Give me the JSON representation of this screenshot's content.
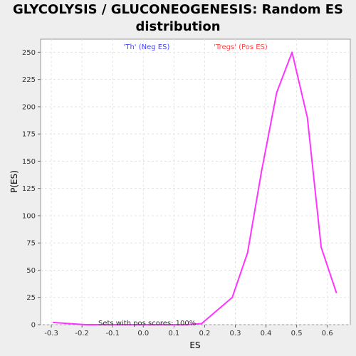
{
  "chart_data": {
    "type": "line",
    "title_line1": "GLYCOLYSIS / GLUCONEOGENESIS: Random ES",
    "title_line2": "distribution",
    "xlabel": "ES",
    "ylabel": "P(ES)",
    "xlim": [
      -0.335,
      0.675
    ],
    "ylim": [
      0,
      262
    ],
    "x_ticks": [
      -0.3,
      -0.2,
      -0.1,
      0.0,
      0.1,
      0.2,
      0.3,
      0.4,
      0.5,
      0.6
    ],
    "x_tick_labels": [
      "-0.3",
      "-0.2",
      "-0.1",
      "0.0",
      "0.1",
      "0.2",
      "0.3",
      "0.4",
      "0.5",
      "0.6"
    ],
    "y_ticks": [
      0,
      25,
      50,
      75,
      100,
      125,
      150,
      175,
      200,
      225,
      250
    ],
    "y_tick_labels": [
      "0",
      "25",
      "50",
      "75",
      "100",
      "125",
      "150",
      "175",
      "200",
      "225",
      "250"
    ],
    "grid": true,
    "series": [
      {
        "color": "#ff33ff",
        "x": [
          -0.295,
          -0.19,
          -0.1,
          0.0,
          0.1,
          0.14,
          0.19,
          0.29,
          0.34,
          0.385,
          0.435,
          0.485,
          0.535,
          0.58,
          0.63
        ],
        "y": [
          2,
          0,
          0,
          0,
          0,
          0,
          1,
          25,
          66,
          140,
          213,
          250,
          190,
          71,
          29
        ]
      }
    ],
    "legend": [
      {
        "label": "'Th' (Neg ES)",
        "color": "#4444ff"
      },
      {
        "label": "'Tregs' (Pos ES)",
        "color": "#ff4444"
      }
    ],
    "annotation": "Sets with pos scores: 100%"
  }
}
